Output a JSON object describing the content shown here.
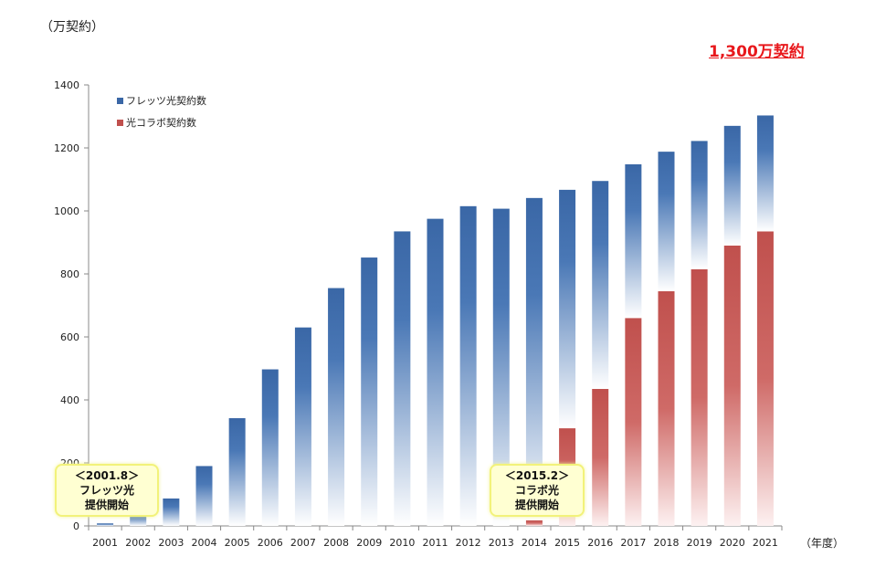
{
  "y_unit": "（万契約）",
  "x_unit": "（年度）",
  "headline": "1,300万契約",
  "legend": {
    "flets": "フレッツ光契約数",
    "collabo": "光コラボ契約数"
  },
  "callouts": [
    {
      "date": "＜2001.8＞",
      "line1": "フレッツ光",
      "line2": "提供開始"
    },
    {
      "date": "＜2015.2＞",
      "line1": "コラボ光",
      "line2": "提供開始"
    }
  ],
  "colors": {
    "flets_top": "#3a67a6",
    "flets_bottom": "#ffffff",
    "collabo_top": "#c0504d",
    "collabo_bottom": "#fdf1f1",
    "headline": "#e8181c",
    "callout_bg": "#ffffd2",
    "callout_border": "#f2f27a"
  },
  "chart_data": {
    "type": "bar",
    "stacked": true,
    "categories": [
      "2001",
      "2002",
      "2003",
      "2004",
      "2005",
      "2006",
      "2007",
      "2008",
      "2009",
      "2010",
      "2011",
      "2012",
      "2013",
      "2014",
      "2015",
      "2016",
      "2017",
      "2018",
      "2019",
      "2020",
      "2021"
    ],
    "series": [
      {
        "name": "光コラボ契約数",
        "values": [
          0,
          0,
          0,
          0,
          0,
          0,
          0,
          0,
          0,
          0,
          0,
          0,
          0,
          18,
          310,
          435,
          660,
          745,
          815,
          890,
          935
        ]
      },
      {
        "name": "フレッツ光契約数",
        "values": [
          8,
          40,
          87,
          190,
          342,
          497,
          630,
          755,
          852,
          935,
          975,
          1015,
          1007,
          1023,
          757,
          660,
          488,
          443,
          407,
          380,
          368
        ]
      }
    ],
    "ylim": [
      0,
      1400
    ],
    "yticks": [
      0,
      200,
      400,
      600,
      800,
      1000,
      1200,
      1400
    ],
    "grid": false,
    "legend_position": "top-left"
  }
}
